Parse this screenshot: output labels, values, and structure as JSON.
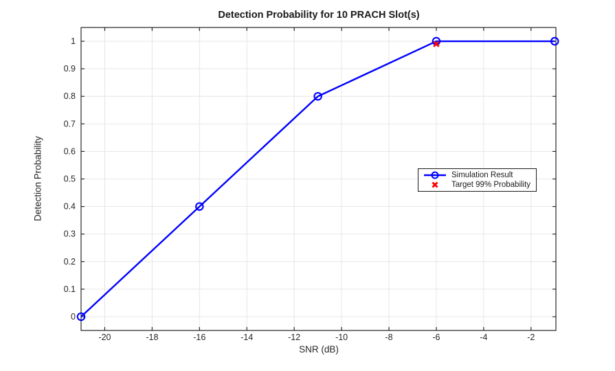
{
  "figure": {
    "background": "#FFFFFF"
  },
  "colors": {
    "grid": "#E6E6E6",
    "axis": "#262626",
    "text": "#262626",
    "simulation_blue": "#0000FF",
    "target_red": "#FF0000"
  },
  "chart_data": {
    "type": "line",
    "title": "Detection Probability for 10 PRACH Slot(s)",
    "xlabel": "SNR (dB)",
    "ylabel": "Detection Probability",
    "xlim": [
      -21,
      -0.95
    ],
    "ylim": [
      -0.05,
      1.05
    ],
    "xticks": [
      -20,
      -18,
      -16,
      -14,
      -12,
      -10,
      -8,
      -6,
      -4,
      -2
    ],
    "yticks": [
      0,
      0.1,
      0.2,
      0.3,
      0.4,
      0.5,
      0.6,
      0.7,
      0.8,
      0.9,
      1
    ],
    "grid": true,
    "legend_position": "right-center",
    "series": [
      {
        "name": "Simulation Result",
        "style": "line",
        "marker": "circle",
        "color": "#0000FF",
        "x": [
          -21,
          -16,
          -11,
          -6,
          -1
        ],
        "y": [
          0,
          0.4,
          0.8,
          1.0,
          1.0
        ]
      },
      {
        "name": "Target 99% Probability",
        "style": "scatter",
        "marker": "x",
        "color": "#FF0000",
        "x": [
          -6
        ],
        "y": [
          0.99
        ]
      }
    ]
  }
}
